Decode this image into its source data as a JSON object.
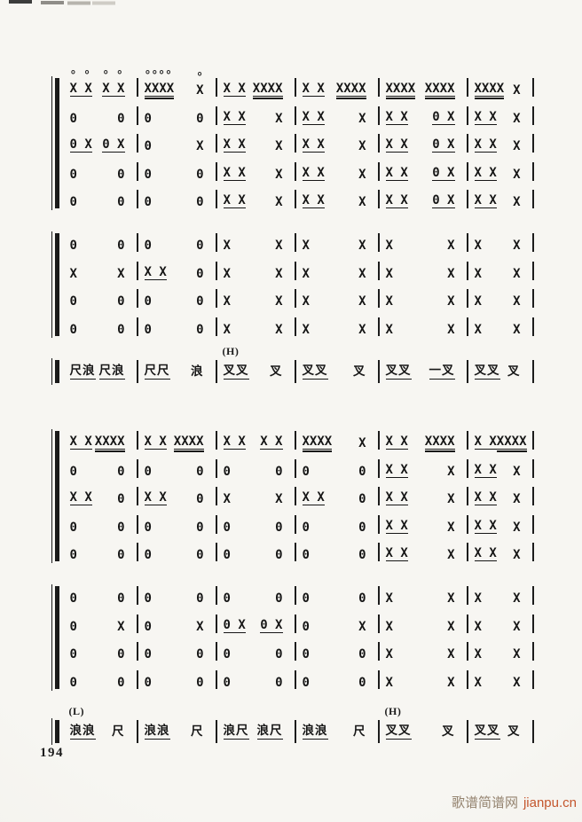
{
  "page": {
    "number": "194",
    "watermark": {
      "site_name": "歌谱简谱网",
      "site_url": "jianpu.cn"
    }
  },
  "notation": {
    "symbols_legend": {
      "strike": "X",
      "rest": "0",
      "sustain_dash": "一",
      "open_stroke_mark": "°",
      "syllables": [
        "尺",
        "浪",
        "叉"
      ],
      "register_labels": [
        "(H)",
        "(L)"
      ]
    },
    "systems": [
      {
        "blocks": [
          [
            [
              [
                "X X|1|o",
                "X X|1|o"
              ],
              [
                "XXXX|2|o",
                "X|0|o"
              ],
              [
                "X X|1",
                "XXXX|2"
              ],
              [
                "X X|1",
                "XXXX|2"
              ],
              [
                "XXXX|2",
                "XXXX|2"
              ],
              [
                "XXXX|2",
                "X"
              ]
            ],
            [
              [
                "0",
                "0"
              ],
              [
                "0",
                "0"
              ],
              [
                "X X|1",
                "X"
              ],
              [
                "X X|1",
                "X"
              ],
              [
                "X X|1",
                "0 X|1"
              ],
              [
                "X X|1",
                "X"
              ]
            ],
            [
              [
                "0 X|1",
                "0 X|1"
              ],
              [
                "0",
                "X"
              ],
              [
                "X X|1",
                "X"
              ],
              [
                "X X|1",
                "X"
              ],
              [
                "X X|1",
                "0 X|1"
              ],
              [
                "X X|1",
                "X"
              ]
            ],
            [
              [
                "0",
                "0"
              ],
              [
                "0",
                "0"
              ],
              [
                "X X|1",
                "X"
              ],
              [
                "X X|1",
                "X"
              ],
              [
                "X X|1",
                "0 X|1"
              ],
              [
                "X X|1",
                "X"
              ]
            ],
            [
              [
                "0",
                "0"
              ],
              [
                "0",
                "0"
              ],
              [
                "X X|1",
                "X"
              ],
              [
                "X X|1",
                "X"
              ],
              [
                "X X|1",
                "0 X|1"
              ],
              [
                "X X|1",
                "X"
              ]
            ]
          ],
          [
            [
              [
                "0",
                "0"
              ],
              [
                "0",
                "0"
              ],
              [
                "X",
                "X"
              ],
              [
                "X",
                "X"
              ],
              [
                "X",
                "X"
              ],
              [
                "X",
                "X"
              ]
            ],
            [
              [
                "X",
                "X"
              ],
              [
                "X X|1",
                "0"
              ],
              [
                "X",
                "X"
              ],
              [
                "X",
                "X"
              ],
              [
                "X",
                "X"
              ],
              [
                "X",
                "X"
              ]
            ],
            [
              [
                "0",
                "0"
              ],
              [
                "0",
                "0"
              ],
              [
                "X",
                "X"
              ],
              [
                "X",
                "X"
              ],
              [
                "X",
                "X"
              ],
              [
                "X",
                "X"
              ]
            ],
            [
              [
                "0",
                "0"
              ],
              [
                "0",
                "0"
              ],
              [
                "X",
                "X"
              ],
              [
                "X",
                "X"
              ],
              [
                "X",
                "X"
              ],
              [
                "X",
                "X"
              ]
            ]
          ]
        ],
        "vocal": [
          {
            "g": [
              "尺浪|1",
              "尺浪|1"
            ]
          },
          {
            "g": [
              "尺尺|1",
              "浪"
            ]
          },
          {
            "l": "(H)",
            "g": [
              "叉叉|1",
              "叉"
            ]
          },
          {
            "g": [
              "叉叉|1",
              "叉"
            ]
          },
          {
            "g": [
              "叉叉|1",
              "一叉|1"
            ]
          },
          {
            "g": [
              "叉叉|1",
              "叉"
            ]
          }
        ]
      },
      {
        "blocks": [
          [
            [
              [
                "X X|1",
                "XXXX|2"
              ],
              [
                "X X|1",
                "XXXX|2"
              ],
              [
                "X X|1",
                "X X|1"
              ],
              [
                "XXXX|2",
                "X"
              ],
              [
                "X X|1",
                "XXXX|2"
              ],
              [
                "X X|1",
                "XXXX|2"
              ]
            ],
            [
              [
                "0",
                "0"
              ],
              [
                "0",
                "0"
              ],
              [
                "0",
                "0"
              ],
              [
                "0",
                "0"
              ],
              [
                "X X|1",
                "X"
              ],
              [
                "X X|1",
                "X"
              ]
            ],
            [
              [
                "X X|1",
                "0"
              ],
              [
                "X X|1",
                "0"
              ],
              [
                "X",
                "X"
              ],
              [
                "X X|1",
                "0"
              ],
              [
                "X X|1",
                "X"
              ],
              [
                "X X|1",
                "X"
              ]
            ],
            [
              [
                "0",
                "0"
              ],
              [
                "0",
                "0"
              ],
              [
                "0",
                "0"
              ],
              [
                "0",
                "0"
              ],
              [
                "X X|1",
                "X"
              ],
              [
                "X X|1",
                "X"
              ]
            ],
            [
              [
                "0",
                "0"
              ],
              [
                "0",
                "0"
              ],
              [
                "0",
                "0"
              ],
              [
                "0",
                "0"
              ],
              [
                "X X|1",
                "X"
              ],
              [
                "X X|1",
                "X"
              ]
            ]
          ],
          [
            [
              [
                "0",
                "0"
              ],
              [
                "0",
                "0"
              ],
              [
                "0",
                "0"
              ],
              [
                "0",
                "0"
              ],
              [
                "X",
                "X"
              ],
              [
                "X",
                "X"
              ]
            ],
            [
              [
                "0",
                "X"
              ],
              [
                "0",
                "X"
              ],
              [
                "0 X|1",
                "0 X|1"
              ],
              [
                "0",
                "X"
              ],
              [
                "X",
                "X"
              ],
              [
                "X",
                "X"
              ]
            ],
            [
              [
                "0",
                "0"
              ],
              [
                "0",
                "0"
              ],
              [
                "0",
                "0"
              ],
              [
                "0",
                "0"
              ],
              [
                "X",
                "X"
              ],
              [
                "X",
                "X"
              ]
            ],
            [
              [
                "0",
                "0"
              ],
              [
                "0",
                "0"
              ],
              [
                "0",
                "0"
              ],
              [
                "0",
                "0"
              ],
              [
                "X",
                "X"
              ],
              [
                "X",
                "X"
              ]
            ]
          ]
        ],
        "vocal": [
          {
            "l": "(L)",
            "g": [
              "浪浪|1",
              "尺"
            ]
          },
          {
            "g": [
              "浪浪|1",
              "尺"
            ]
          },
          {
            "g": [
              "浪尺|1",
              "浪尺|1"
            ]
          },
          {
            "g": [
              "浪浪|1",
              "尺"
            ]
          },
          {
            "l": "(H)",
            "g": [
              "叉叉|1",
              "叉"
            ]
          },
          {
            "g": [
              "叉叉|1",
              "叉"
            ]
          }
        ]
      }
    ]
  }
}
